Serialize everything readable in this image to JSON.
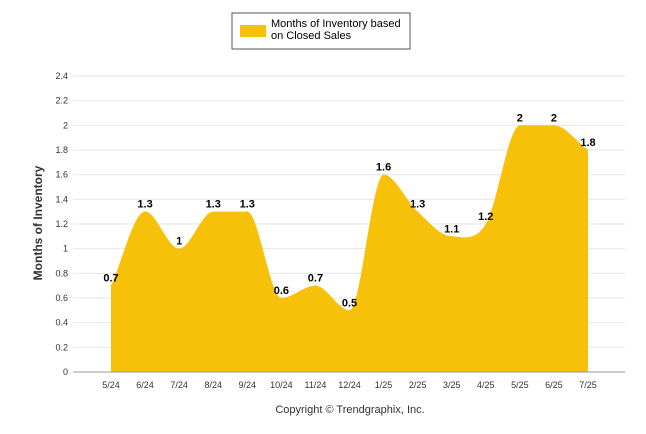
{
  "chart_data": {
    "type": "area",
    "categories": [
      "5/24",
      "6/24",
      "7/24",
      "8/24",
      "9/24",
      "10/24",
      "11/24",
      "12/24",
      "1/25",
      "2/25",
      "3/25",
      "4/25",
      "5/25",
      "6/25",
      "7/25"
    ],
    "series": [
      {
        "name": "Months of Inventory based on Closed Sales",
        "values": [
          0.7,
          1.3,
          1,
          1.3,
          1.3,
          0.6,
          0.7,
          0.5,
          1.6,
          1.3,
          1.1,
          1.2,
          2,
          2,
          1.8
        ],
        "labels": [
          "0.7",
          "1.3",
          "1",
          "1.3",
          "1.3",
          "0.6",
          "0.7",
          "0.5",
          "1.6",
          "1.3",
          "1.1",
          "1.2",
          "2",
          "2",
          "1.8"
        ],
        "color": "#f7c10a"
      }
    ],
    "ylabel": "Months of Inventory",
    "xlabel": "",
    "ylim": [
      0,
      2.4
    ],
    "yticks": [
      "0",
      "0.2",
      "0.4",
      "0.6",
      "0.8",
      "1",
      "1.2",
      "1.4",
      "1.6",
      "1.8",
      "2",
      "2.2",
      "2.4"
    ],
    "grid": true,
    "legend_position": "top-center"
  },
  "credit": "Copyright © Trendgraphix, Inc."
}
